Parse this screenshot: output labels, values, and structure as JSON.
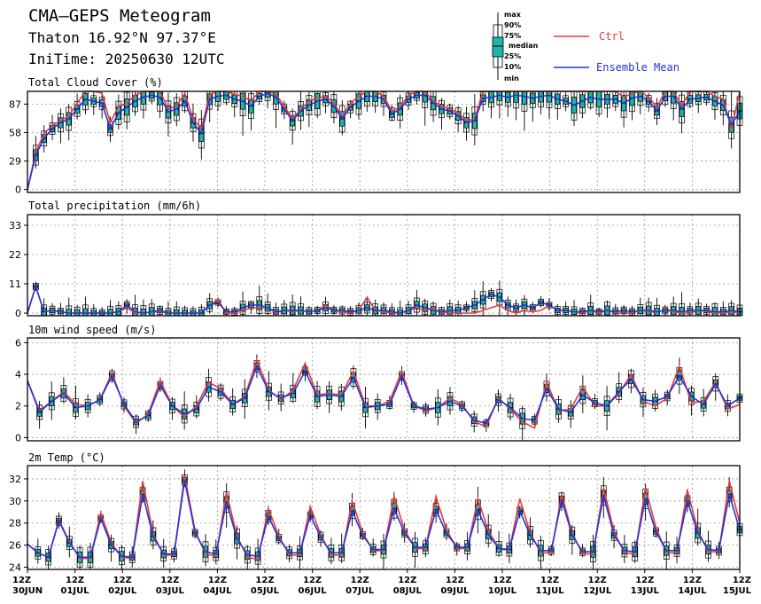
{
  "header": {
    "title": "CMA–GEPS Meteogram",
    "location": "Thaton 16.92°N 97.37°E",
    "init_time": "IniTime: 20250630 12UTC"
  },
  "legend": {
    "box_labels": [
      "max",
      "90%",
      "75%",
      "median",
      "25%",
      "10%",
      "min"
    ],
    "ctrl_label": "Ctrl",
    "mean_label": "Ensemble Mean",
    "ctrl_color": "#e8393b",
    "mean_color": "#2233d6",
    "box_color": "#1fb5ad"
  },
  "chart_data": [
    {
      "type": "line",
      "title": "Total Cloud Cover (%)",
      "yticks": [
        0,
        29,
        58,
        87
      ],
      "ylim": [
        -3,
        100
      ],
      "grid": true,
      "x_start": "2025-06-30 12UTC",
      "x_step": "6h",
      "series": [
        {
          "name": "Ctrl",
          "values": [
            0,
            38,
            57,
            65,
            70,
            75,
            88,
            100,
            100,
            98,
            68,
            85,
            88,
            96,
            100,
            100,
            100,
            82,
            85,
            98,
            72,
            62,
            97,
            100,
            100,
            97,
            95,
            90,
            100,
            100,
            97,
            85,
            72,
            82,
            90,
            93,
            95,
            88,
            74,
            88,
            95,
            100,
            100,
            95,
            80,
            84,
            96,
            100,
            100,
            90,
            85,
            82,
            78,
            70,
            72,
            100,
            100,
            100,
            100,
            100,
            100,
            100,
            100,
            100,
            100,
            100,
            100,
            100,
            100,
            100,
            100,
            100,
            94,
            98,
            100,
            94,
            84,
            100,
            100,
            85,
            100,
            100,
            100,
            95,
            92,
            62,
            100
          ]
        },
        {
          "name": "Ensemble Mean",
          "values": [
            0,
            35,
            52,
            62,
            68,
            72,
            82,
            92,
            90,
            88,
            62,
            78,
            84,
            90,
            94,
            96,
            94,
            79,
            82,
            90,
            68,
            57,
            92,
            95,
            96,
            92,
            90,
            85,
            95,
            98,
            94,
            82,
            70,
            80,
            86,
            90,
            92,
            85,
            72,
            84,
            90,
            95,
            95,
            92,
            77,
            82,
            92,
            96,
            96,
            88,
            82,
            80,
            75,
            68,
            70,
            93,
            94,
            96,
            94,
            96,
            95,
            93,
            95,
            96,
            92,
            90,
            86,
            90,
            94,
            92,
            92,
            92,
            88,
            93,
            95,
            90,
            80,
            95,
            95,
            82,
            92,
            93,
            94,
            90,
            86,
            66,
            80
          ]
        }
      ]
    },
    {
      "type": "line",
      "title": "Total precipitation (mm/6h)",
      "yticks": [
        0,
        11,
        22,
        33
      ],
      "ylim": [
        -1,
        37
      ],
      "grid": true,
      "x_start": "2025-06-30 12UTC",
      "x_step": "6h",
      "series": [
        {
          "name": "Ctrl",
          "values": [
            0,
            10,
            0.5,
            1,
            0.5,
            0,
            0,
            0,
            0,
            0,
            0,
            0.5,
            2,
            0,
            0,
            0.5,
            0.5,
            0,
            0,
            0,
            0,
            0,
            3,
            5,
            0,
            0,
            1,
            2,
            2,
            2,
            0,
            1,
            0.5,
            1,
            0.5,
            1,
            3,
            1,
            0.5,
            0,
            1,
            6,
            1,
            0.5,
            0,
            0,
            1,
            2,
            1,
            2,
            0,
            0.5,
            0,
            0,
            0,
            1,
            2,
            3,
            1,
            0,
            1,
            0.5,
            1,
            3,
            1,
            1,
            0.5,
            0,
            1,
            0,
            1,
            0,
            0,
            0,
            1,
            0.5,
            0.5,
            1,
            0.5,
            0,
            0,
            1,
            0.5,
            0,
            0,
            0.5,
            0
          ]
        },
        {
          "name": "Ensemble Mean",
          "values": [
            0,
            10,
            0.5,
            1,
            0.5,
            0,
            0,
            0,
            0,
            0,
            0,
            0.5,
            3,
            0.5,
            0,
            0.5,
            1,
            0,
            0,
            0,
            0,
            0,
            3,
            4,
            0.5,
            0.5,
            2,
            3,
            3,
            2,
            0.5,
            1,
            1,
            1,
            0.5,
            1,
            2,
            1,
            1,
            0.5,
            1,
            2,
            1,
            1,
            0.5,
            0,
            1,
            3,
            2,
            1,
            0.5,
            1,
            1,
            2,
            3,
            5,
            7,
            6,
            3,
            2,
            3,
            2,
            4,
            3,
            1,
            1,
            0.5,
            0.5,
            1,
            0.5,
            1,
            0.5,
            1,
            0.5,
            1,
            1,
            0.5,
            1,
            1,
            0.5,
            1,
            1,
            1,
            0.5,
            0.5,
            1,
            0.5
          ]
        }
      ]
    },
    {
      "type": "line",
      "title": "10m wind speed (m/s)",
      "yticks": [
        0,
        2,
        4,
        6
      ],
      "ylim": [
        -0.2,
        6.3
      ],
      "grid": true,
      "x_start": "2025-06-30 12UTC",
      "x_step": "6h",
      "series": [
        {
          "name": "Ctrl",
          "values": [
            3.6,
            1.7,
            2.3,
            2.9,
            2.1,
            2.0,
            2.4,
            4.1,
            2.0,
            0.9,
            1.5,
            3.6,
            2.0,
            1.3,
            2.0,
            3.5,
            3.1,
            2.1,
            2.6,
            4.9,
            3.0,
            2.4,
            3.0,
            4.7,
            2.7,
            2.8,
            2.7,
            4.2,
            2.0,
            2.0,
            2.3,
            4.2,
            2.0,
            1.7,
            1.9,
            2.5,
            2.1,
            1.0,
            0.7,
            2.5,
            1.8,
            1.0,
            0.6,
            3.5,
            1.7,
            1.8,
            3.2,
            2.0,
            2.0,
            2.8,
            4.0,
            2.3,
            2.0,
            2.5,
            4.5,
            2.2,
            2.3,
            3.5,
            1.8,
            2.1
          ]
        },
        {
          "name": "Ensemble Mean",
          "values": [
            3.6,
            1.6,
            2.3,
            2.8,
            1.9,
            2.0,
            2.4,
            3.9,
            2.1,
            1.0,
            1.4,
            3.3,
            2.0,
            1.5,
            1.8,
            3.2,
            2.9,
            2.1,
            2.5,
            4.5,
            2.9,
            2.5,
            2.8,
            4.2,
            2.6,
            2.7,
            2.6,
            3.8,
            1.9,
            2.0,
            2.1,
            3.9,
            2.0,
            1.8,
            1.9,
            2.3,
            2.0,
            1.1,
            0.9,
            2.4,
            1.9,
            1.2,
            1.1,
            3.1,
            1.8,
            1.6,
            2.7,
            2.2,
            2.0,
            2.9,
            3.7,
            2.4,
            2.3,
            2.6,
            3.9,
            2.6,
            2.1,
            3.4,
            2.0,
            2.5
          ]
        }
      ]
    },
    {
      "type": "line",
      "title": "2m Temp (°C)",
      "yticks": [
        24,
        26,
        28,
        30,
        32
      ],
      "ylim": [
        23.8,
        33.2
      ],
      "grid": true,
      "x_start": "2025-06-30 12UTC",
      "x_step": "6h",
      "series": [
        {
          "name": "Ctrl",
          "values": [
            26.1,
            25.3,
            24.9,
            28.3,
            26.3,
            24.8,
            24.8,
            28.9,
            26.2,
            24.9,
            24.8,
            31.8,
            27.0,
            25.1,
            25.1,
            32.3,
            27.3,
            25.2,
            25.0,
            30.8,
            26.8,
            24.9,
            24.7,
            29.3,
            26.8,
            25.1,
            25.1,
            29.5,
            26.9,
            25.1,
            25.1,
            30.0,
            27.1,
            25.5,
            25.5,
            30.4,
            27.4,
            25.7,
            25.7,
            30.4,
            27.4,
            25.7,
            25.7,
            30.2,
            27.3,
            25.7,
            25.5,
            30.2,
            27.1,
            25.3,
            25.3,
            30.6,
            27.1,
            25.2,
            25.2,
            31.2,
            27.2,
            25.3,
            25.2,
            31.2,
            27.6,
            25.3,
            25.3,
            31.0,
            27.3,
            25.4,
            25.4,
            31.8,
            28.0
          ]
        },
        {
          "name": "Ensemble Mean",
          "values": [
            26.1,
            25.3,
            24.9,
            28.2,
            26.2,
            24.9,
            24.9,
            28.4,
            26.0,
            25.0,
            24.9,
            30.6,
            26.8,
            25.2,
            25.2,
            31.9,
            27.1,
            25.4,
            25.2,
            29.9,
            26.6,
            25.1,
            25.0,
            28.6,
            26.6,
            25.3,
            25.3,
            28.7,
            26.7,
            25.3,
            25.3,
            29.1,
            26.9,
            25.6,
            25.6,
            29.3,
            27.1,
            25.8,
            25.8,
            29.2,
            27.1,
            25.8,
            25.8,
            29.2,
            27.0,
            25.7,
            25.6,
            29.1,
            26.9,
            25.5,
            25.5,
            30.1,
            26.9,
            25.4,
            25.4,
            30.5,
            26.9,
            25.5,
            25.4,
            30.2,
            27.2,
            25.5,
            25.5,
            30.0,
            27.1,
            25.6,
            25.5,
            30.6,
            27.4
          ]
        }
      ]
    }
  ],
  "x_axis": {
    "hour_label": "12Z",
    "dates": [
      "30JUN",
      "01JUL",
      "02JUL",
      "03JUL",
      "04JUL",
      "05JUL",
      "06JUL",
      "07JUL",
      "08JUL",
      "09JUL",
      "10JUL",
      "11JUL",
      "12JUL",
      "13JUL",
      "14JUL",
      "15JUL"
    ]
  }
}
